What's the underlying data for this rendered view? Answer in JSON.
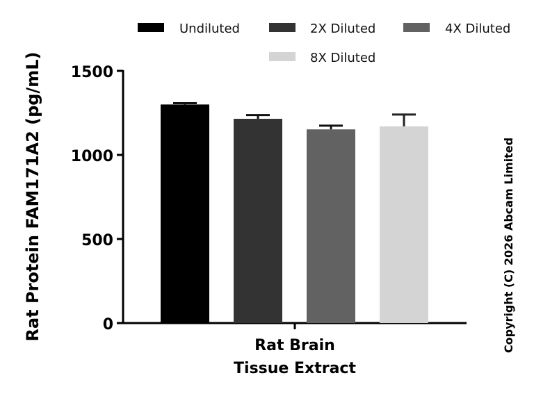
{
  "chart_data": {
    "type": "bar",
    "title": "",
    "xlabel": [
      "Rat Brain",
      "Tissue Extract"
    ],
    "ylabel": "Rat Protein FAM171A2 (pg/mL)",
    "ylim": [
      0,
      1500
    ],
    "yticks": [
      "0",
      "500",
      "1000",
      "1500"
    ],
    "grid": false,
    "legend_position": "top",
    "series": [
      {
        "name": "Undiluted",
        "value": 1300,
        "error": 8,
        "color": "#000000"
      },
      {
        "name": "2X Diluted",
        "value": 1215,
        "error": 22,
        "color": "#333333"
      },
      {
        "name": "4X Diluted",
        "value": 1152,
        "error": 22,
        "color": "#626262"
      },
      {
        "name": "8X Diluted",
        "value": 1170,
        "error": 70,
        "color": "#d4d4d4"
      }
    ]
  },
  "copyright": "Copyright (C) 2026 Abcam Limited"
}
